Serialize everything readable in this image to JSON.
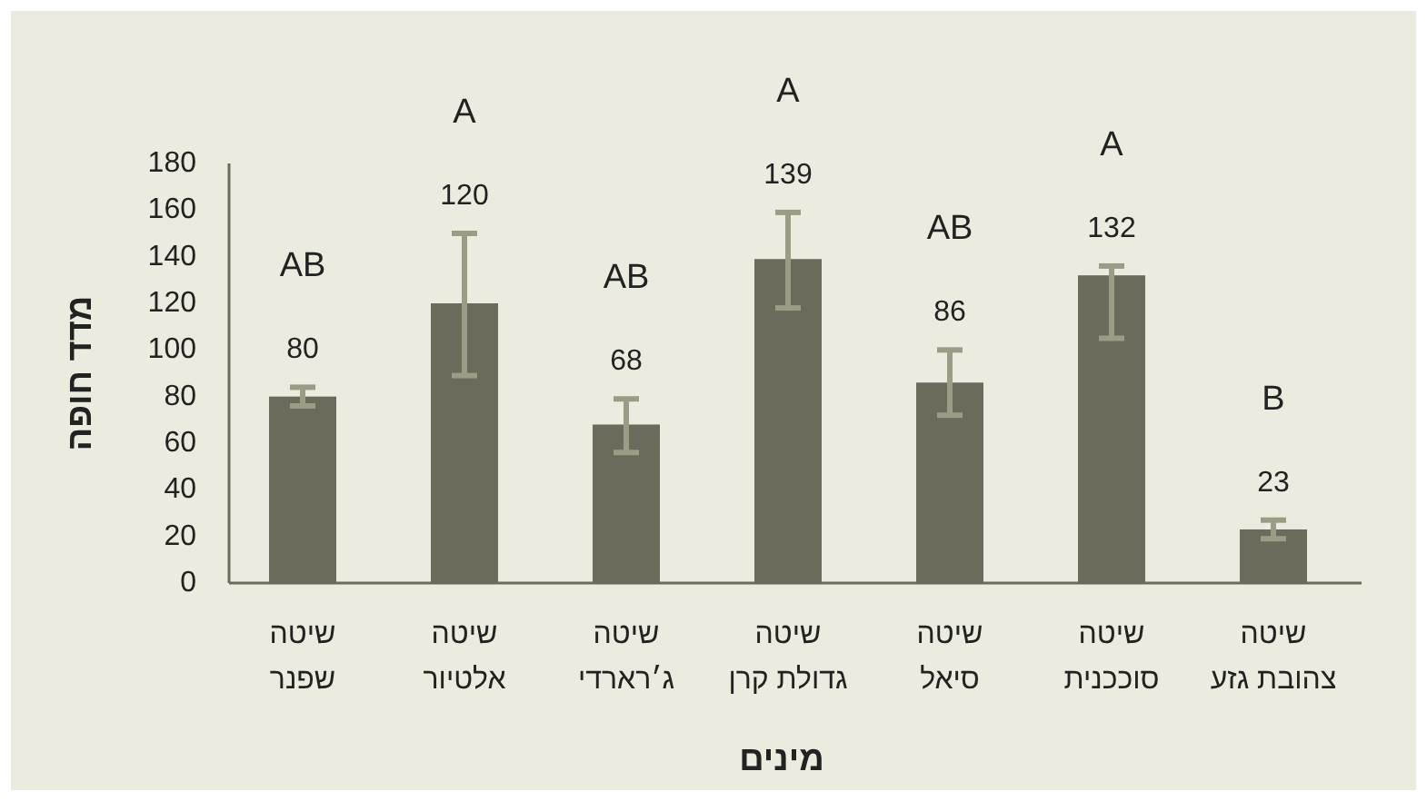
{
  "chart_data": {
    "type": "bar",
    "xlabel": "מינים",
    "ylabel": "מדד חופה",
    "categories": [
      "שיטה שפנר",
      "שיטה אלטיור",
      "שיטה ג׳רארדי",
      "שיטה גדולת קרן",
      "שיטה סיאל",
      "שיטה סוככנית",
      "שיטה צהובת גזע"
    ],
    "values": [
      80,
      120,
      68,
      139,
      86,
      132,
      23
    ],
    "errors": [
      [
        76,
        84
      ],
      [
        89,
        150
      ],
      [
        56,
        79
      ],
      [
        118,
        159
      ],
      [
        72,
        100
      ],
      [
        105,
        136
      ],
      [
        19,
        27
      ]
    ],
    "color": "#6b6a5b",
    "data_labels": true,
    "ylim": [
      0,
      180
    ],
    "yticks": [
      0,
      20,
      40,
      60,
      80,
      100,
      120,
      140,
      160,
      180
    ],
    "annotations": [
      "AB",
      "A",
      "AB",
      "A",
      "AB",
      "A",
      "B"
    ]
  }
}
